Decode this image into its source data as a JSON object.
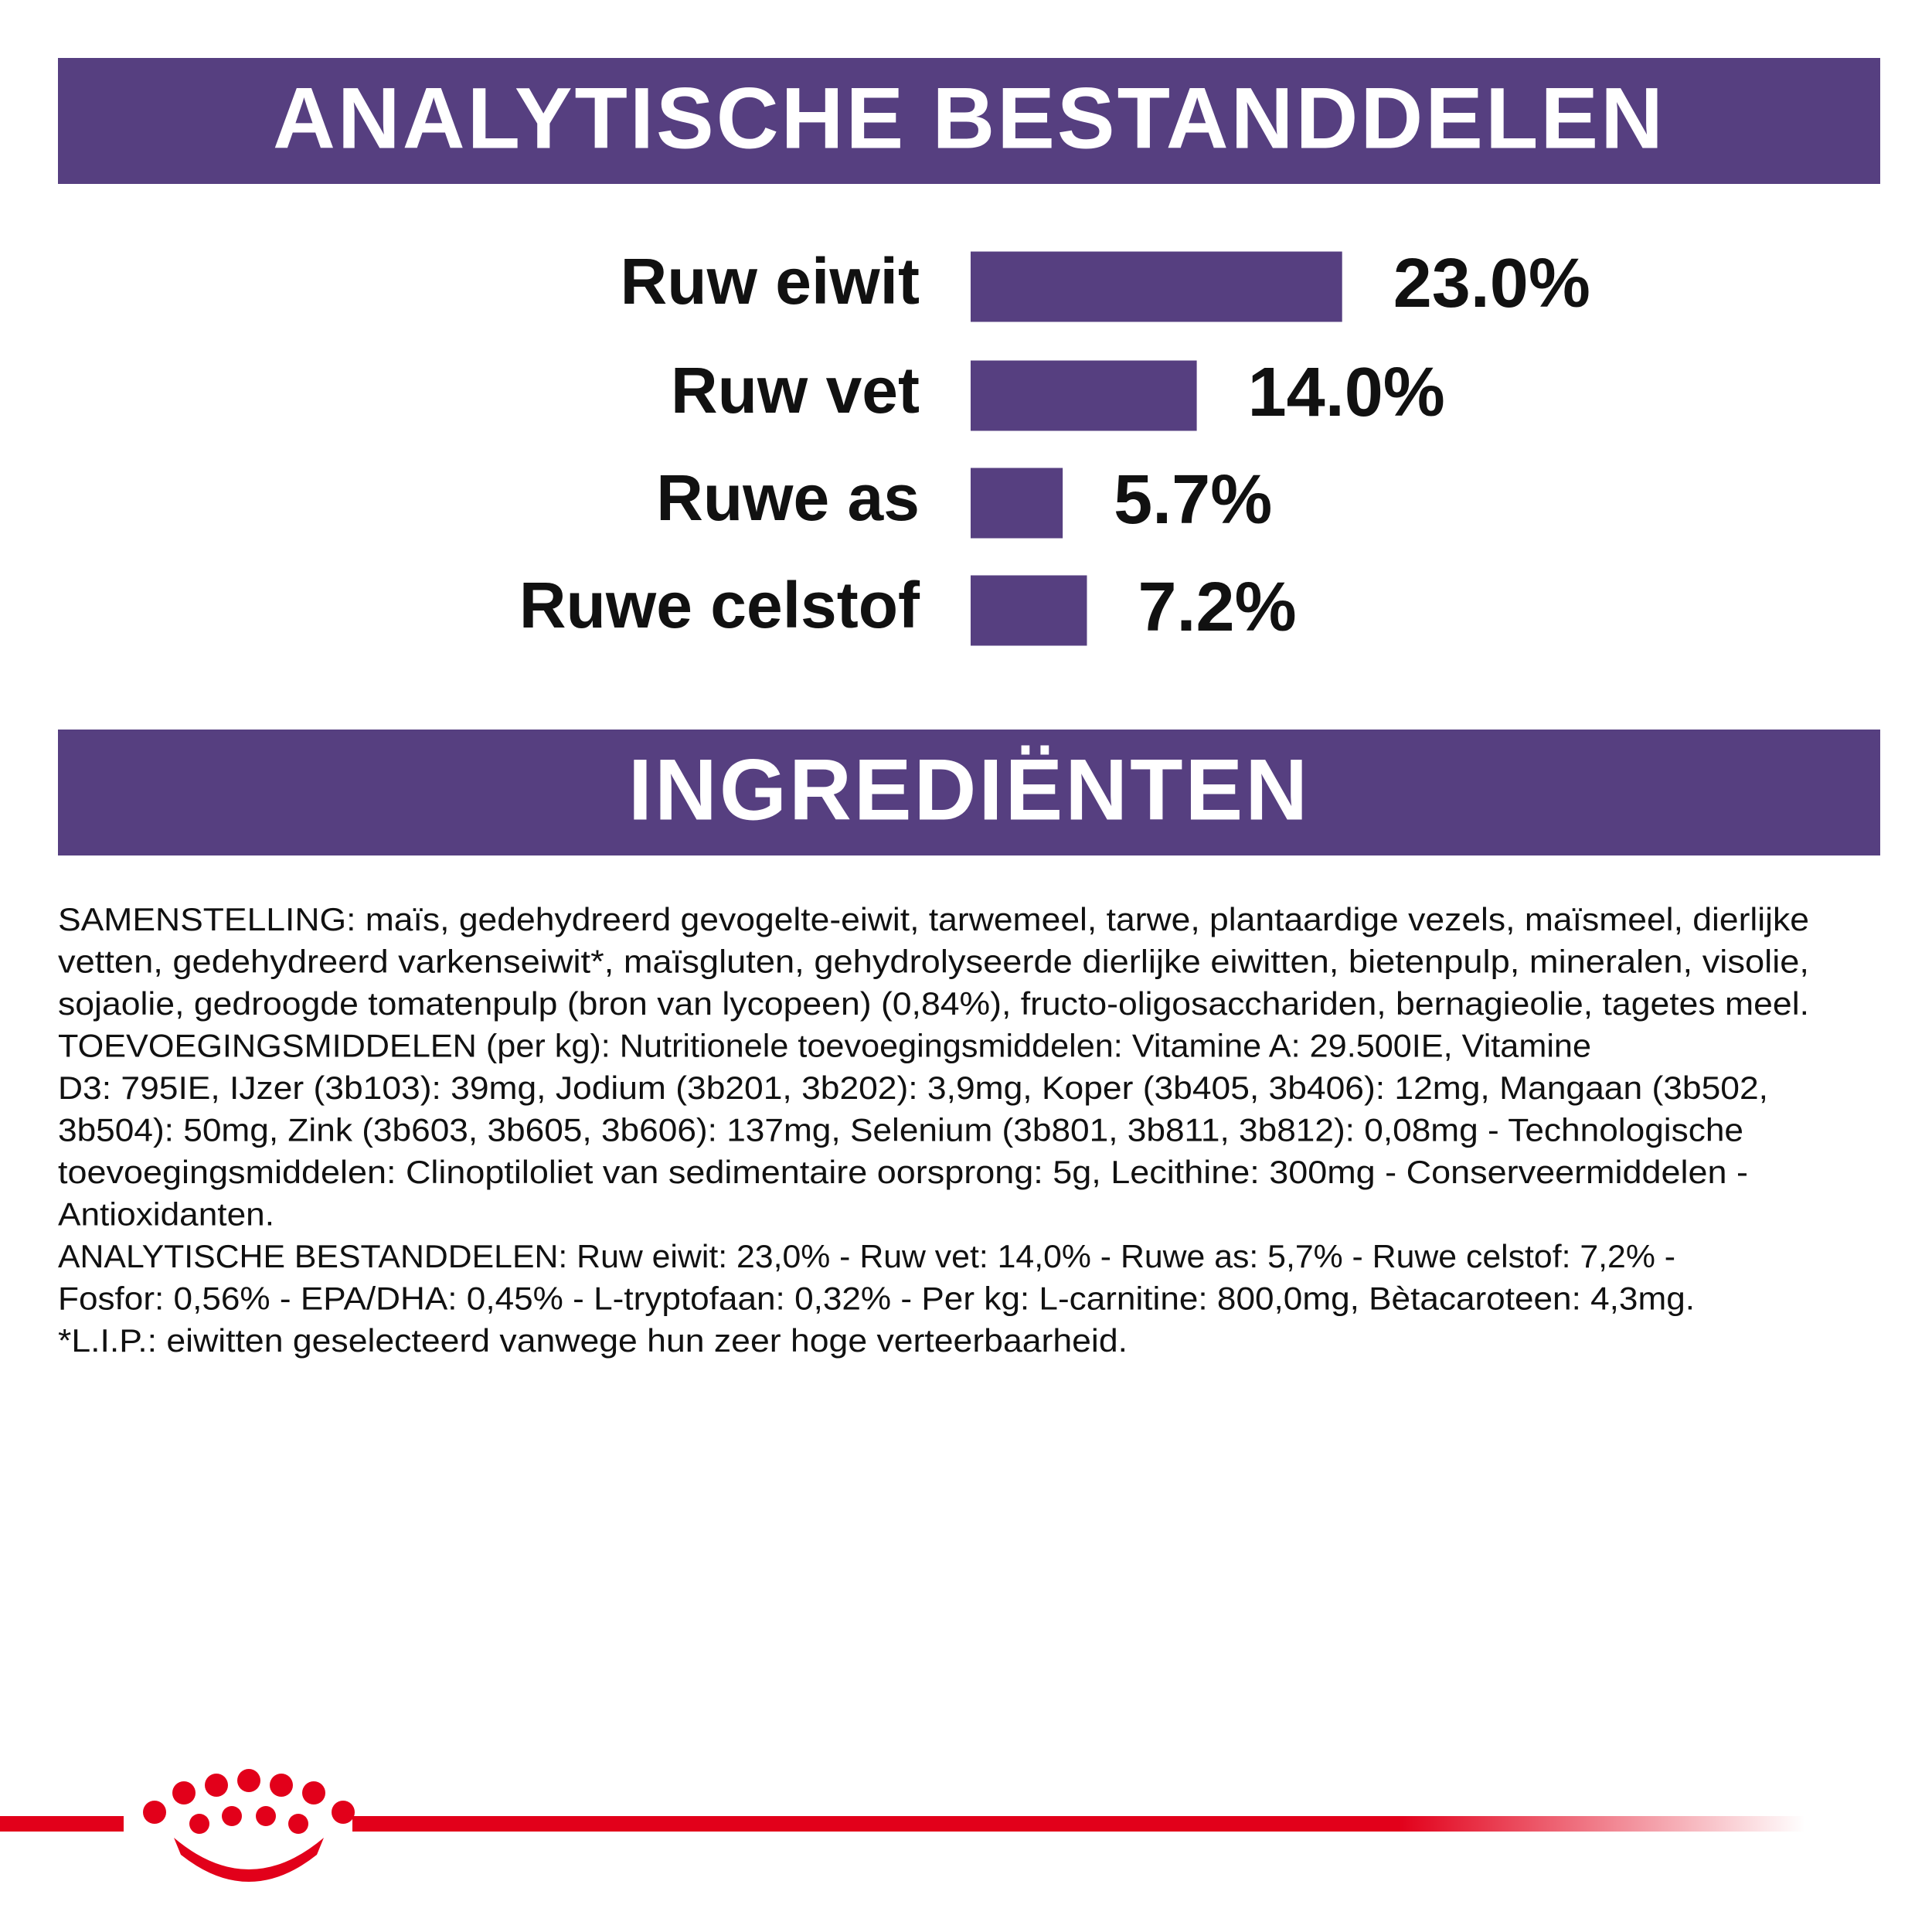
{
  "chart_data": {
    "type": "bar",
    "title": "ANALYTISCHE BESTANDDELEN",
    "categories": [
      "Ruw eiwit",
      "Ruw vet",
      "Ruwe as",
      "Ruwe celstof"
    ],
    "values": [
      23.0,
      14.0,
      5.7,
      7.2
    ],
    "value_labels": [
      "23.0%",
      "14.0%",
      "5.7%",
      "7.2%"
    ],
    "color": "#563f80"
  },
  "ingredients": {
    "title": "INGREDIËNTEN",
    "lines": [
      "SAMENSTELLING: maïs, gedehydreerd gevogelte-eiwit, tarwemeel, tarwe, plantaardige vezels, maïsmeel, dierlijke",
      "vetten, gedehydreerd varkenseiwit*, maïsgluten, gehydrolyseerde dierlijke eiwitten, bietenpulp, mineralen, visolie,",
      "sojaolie, gedroogde tomatenpulp (bron van lycopeen) (0,84%), fructo-oligosacchariden, bernagieolie, tagetes meel.",
      "TOEVOEGINGSMIDDELEN (per kg): Nutritionele toevoegingsmiddelen: Vitamine A: 29.500IE, Vitamine",
      "D3: 795IE, IJzer (3b103): 39mg, Jodium (3b201, 3b202): 3,9mg, Koper (3b405, 3b406): 12mg, Mangaan (3b502,",
      "3b504): 50mg, Zink (3b603, 3b605, 3b606): 137mg, Selenium (3b801, 3b811, 3b812): 0,08mg - Technologische",
      "toevoegingsmiddelen: Clinoptiloliet van sedimentaire oorsprong: 5g, Lecithine: 300mg - Conserveermiddelen -",
      "Antioxidanten.",
      "ANALYTISCHE BESTANDDELEN: Ruw eiwit: 23,0% - Ruw vet: 14,0% - Ruwe as: 5,7% - Ruwe celstof: 7,2% -",
      "Fosfor: 0,56% - EPA/DHA: 0,45% - L-tryptofaan: 0,32% - Per kg: L-carnitine: 800,0mg, Bètacaroteen: 4,3mg.",
      "*L.I.P.: eiwitten geselecteerd vanwege hun zeer hoge verteerbaarheid."
    ]
  }
}
